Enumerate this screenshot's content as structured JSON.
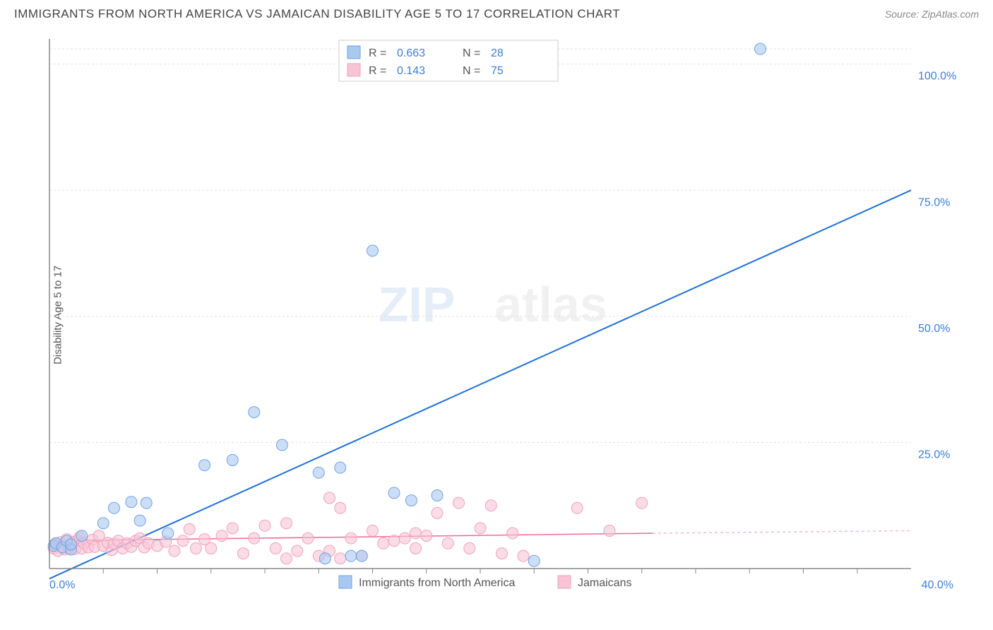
{
  "title": "IMMIGRANTS FROM NORTH AMERICA VS JAMAICAN DISABILITY AGE 5 TO 17 CORRELATION CHART",
  "source": "Source: ZipAtlas.com",
  "y_axis_label": "Disability Age 5 to 17",
  "watermark_a": "ZIP",
  "watermark_b": "atlas",
  "chart": {
    "type": "scatter",
    "xlim": [
      0,
      40
    ],
    "ylim": [
      0,
      105
    ],
    "x_origin_label": "0.0%",
    "x_end_label": "40.0%",
    "y_ticks": [
      {
        "value": 25,
        "label": "25.0%"
      },
      {
        "value": 50,
        "label": "50.0%"
      },
      {
        "value": 75,
        "label": "75.0%"
      },
      {
        "value": 100,
        "label": "100.0%"
      }
    ],
    "y_gridlines": [
      25,
      50,
      75,
      100,
      103
    ],
    "x_minor_ticks": [
      2.5,
      5,
      7.5,
      10,
      12.5,
      15,
      17.5,
      20,
      22.5,
      25,
      27.5,
      30,
      32.5,
      35,
      37.5
    ],
    "marker_radius": 8,
    "marker_opacity": 0.6,
    "colors": {
      "blue_fill": "#a8c8f0",
      "blue_stroke": "#6ea3e5",
      "pink_fill": "#f7c4d6",
      "pink_stroke": "#f0a0bd",
      "trend_blue": "#1e6fd9",
      "trend_pink": "#f0689a",
      "grid": "#e0e0e0",
      "axis": "#888888",
      "background": "#ffffff"
    },
    "series_blue": {
      "name": "Immigrants from North America",
      "R": "0.663",
      "N": "28",
      "trend": {
        "x1": 0,
        "y1": -2,
        "x2": 40,
        "y2": 75
      },
      "points": [
        [
          0.2,
          4.5
        ],
        [
          0.3,
          5.0
        ],
        [
          0.6,
          4.2
        ],
        [
          0.8,
          5.5
        ],
        [
          1.0,
          3.8
        ],
        [
          1.0,
          4.8
        ],
        [
          1.5,
          6.5
        ],
        [
          2.5,
          9.0
        ],
        [
          3.0,
          12.0
        ],
        [
          3.8,
          13.2
        ],
        [
          4.2,
          9.5
        ],
        [
          4.5,
          13.0
        ],
        [
          5.5,
          7.0
        ],
        [
          7.2,
          20.5
        ],
        [
          8.5,
          21.5
        ],
        [
          9.5,
          31.0
        ],
        [
          10.8,
          24.5
        ],
        [
          12.5,
          19.0
        ],
        [
          12.8,
          2.0
        ],
        [
          13.5,
          20.0
        ],
        [
          14.0,
          2.5
        ],
        [
          14.5,
          2.5
        ],
        [
          16.0,
          15.0
        ],
        [
          16.8,
          13.5
        ],
        [
          18.0,
          14.5
        ],
        [
          22.5,
          1.5
        ],
        [
          15.0,
          63.0
        ],
        [
          33.0,
          103.0
        ]
      ]
    },
    "series_pink": {
      "name": "Jamaicans",
      "R": "0.143",
      "N": "75",
      "trend_solid": {
        "x1": 0,
        "y1": 5.5,
        "x2": 28,
        "y2": 7.0
      },
      "trend_dash": {
        "x1": 28,
        "y1": 7.0,
        "x2": 40,
        "y2": 7.5
      },
      "points": [
        [
          0.2,
          4.0
        ],
        [
          0.3,
          4.8
        ],
        [
          0.4,
          3.5
        ],
        [
          0.5,
          5.2
        ],
        [
          0.6,
          4.3
        ],
        [
          0.7,
          3.8
        ],
        [
          0.8,
          5.8
        ],
        [
          0.9,
          4.0
        ],
        [
          1.0,
          4.5
        ],
        [
          1.1,
          5.3
        ],
        [
          1.2,
          3.9
        ],
        [
          1.3,
          5.5
        ],
        [
          1.4,
          6.2
        ],
        [
          1.5,
          4.0
        ],
        [
          1.6,
          5.0
        ],
        [
          1.8,
          4.2
        ],
        [
          2.0,
          5.7
        ],
        [
          2.1,
          4.3
        ],
        [
          2.3,
          6.5
        ],
        [
          2.5,
          4.5
        ],
        [
          2.7,
          5.1
        ],
        [
          2.9,
          3.7
        ],
        [
          3.0,
          4.9
        ],
        [
          3.2,
          5.5
        ],
        [
          3.4,
          4.0
        ],
        [
          3.6,
          5.0
        ],
        [
          3.8,
          4.3
        ],
        [
          4.0,
          5.5
        ],
        [
          4.2,
          6.0
        ],
        [
          4.4,
          4.2
        ],
        [
          4.6,
          5.0
        ],
        [
          5.0,
          4.5
        ],
        [
          5.4,
          5.3
        ],
        [
          5.8,
          3.5
        ],
        [
          6.2,
          5.5
        ],
        [
          6.5,
          7.8
        ],
        [
          6.8,
          4.0
        ],
        [
          7.2,
          5.8
        ],
        [
          7.5,
          4.0
        ],
        [
          8.0,
          6.5
        ],
        [
          8.5,
          8.0
        ],
        [
          9.0,
          3.0
        ],
        [
          9.5,
          6.0
        ],
        [
          10.0,
          8.5
        ],
        [
          10.5,
          4.0
        ],
        [
          11.0,
          9.0
        ],
        [
          11.0,
          2.0
        ],
        [
          11.5,
          3.5
        ],
        [
          12.0,
          6.0
        ],
        [
          12.5,
          2.5
        ],
        [
          13.0,
          14.0
        ],
        [
          13.0,
          3.5
        ],
        [
          13.5,
          12.0
        ],
        [
          13.5,
          2.0
        ],
        [
          14.0,
          6.0
        ],
        [
          14.5,
          2.5
        ],
        [
          15.0,
          7.5
        ],
        [
          15.5,
          5.0
        ],
        [
          16.0,
          5.5
        ],
        [
          16.5,
          6.0
        ],
        [
          17.0,
          4.0
        ],
        [
          17.0,
          7.0
        ],
        [
          17.5,
          6.5
        ],
        [
          18.0,
          11.0
        ],
        [
          18.5,
          5.0
        ],
        [
          19.0,
          13.0
        ],
        [
          19.5,
          4.0
        ],
        [
          20.0,
          8.0
        ],
        [
          20.5,
          12.5
        ],
        [
          21.0,
          3.0
        ],
        [
          21.5,
          7.0
        ],
        [
          22.0,
          2.5
        ],
        [
          24.5,
          12.0
        ],
        [
          26.0,
          7.5
        ],
        [
          27.5,
          13.0
        ]
      ]
    }
  },
  "legend_series": [
    {
      "label": "Immigrants from North America",
      "color_key": "blue"
    },
    {
      "label": "Jamaicans",
      "color_key": "pink"
    }
  ]
}
